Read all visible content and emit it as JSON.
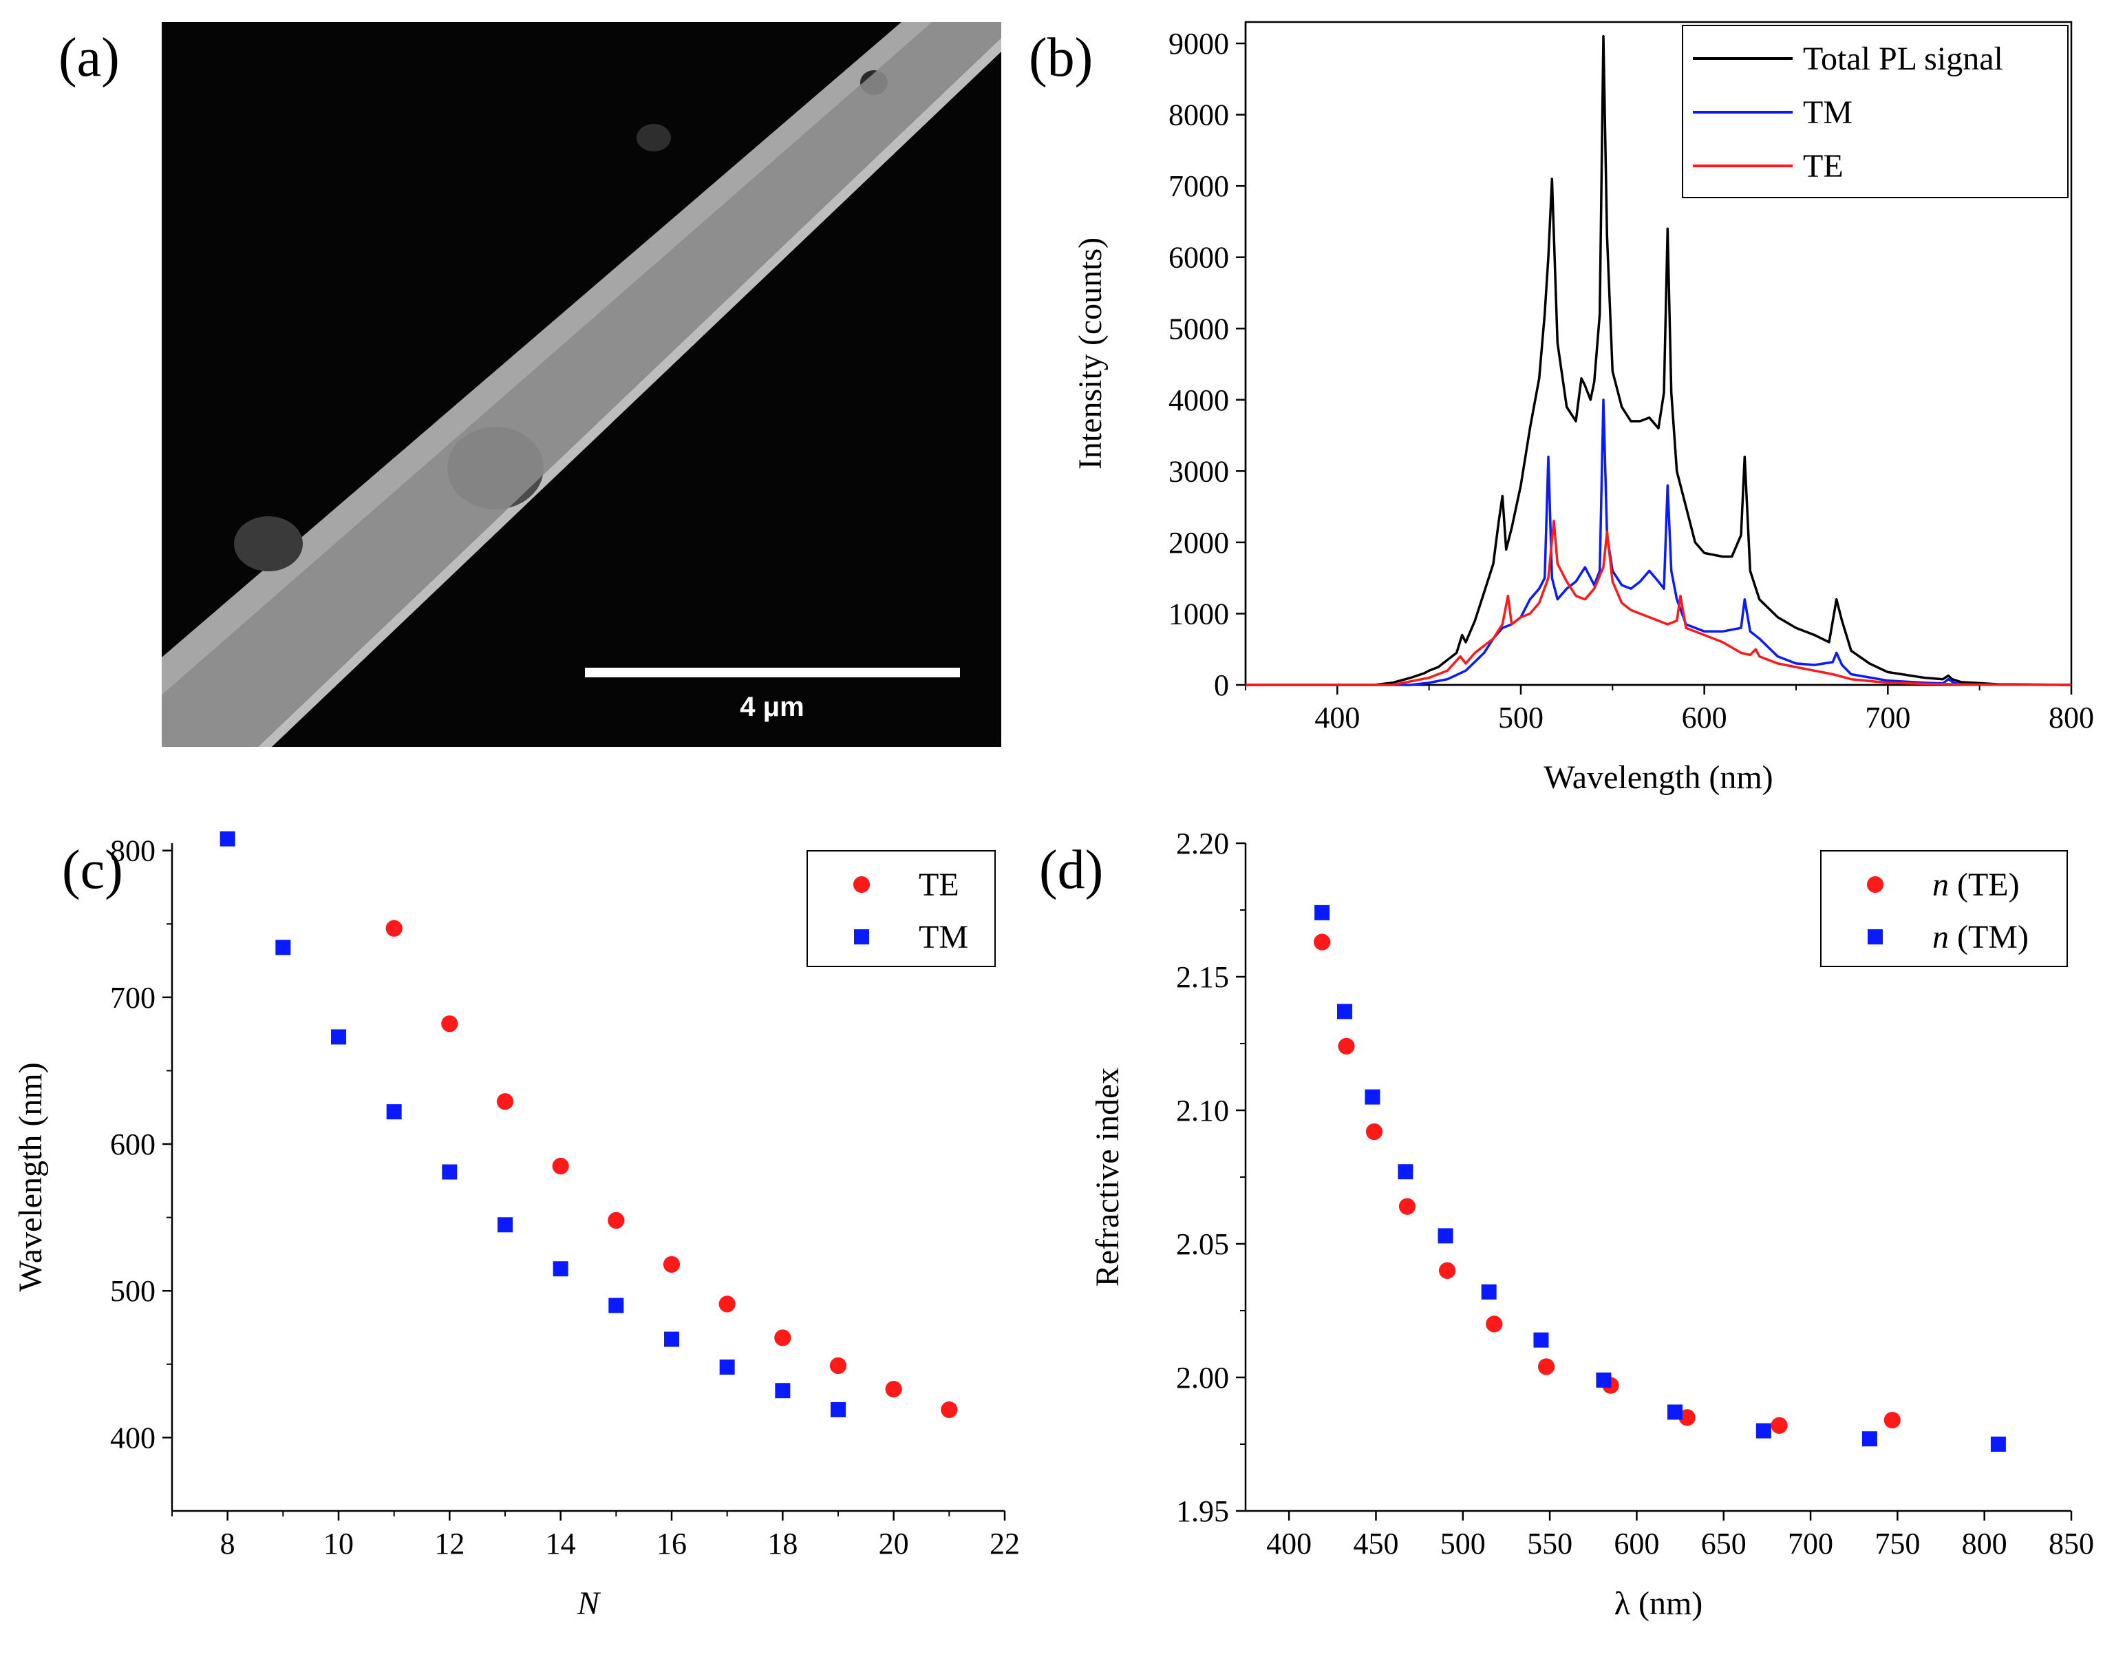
{
  "panels": {
    "a": {
      "label": "(a)",
      "scale_bar": "4 μm"
    },
    "b": {
      "label": "(b)"
    },
    "c": {
      "label": "(c)"
    },
    "d": {
      "label": "(d)"
    }
  },
  "colors": {
    "total": "#000000",
    "tm": "#0a1aff",
    "te": "#ff1a1a"
  },
  "chart_data": [
    {
      "panel": "b",
      "type": "line",
      "title": "",
      "xlabel": "Wavelength (nm)",
      "ylabel": "Intensity (counts)",
      "xlim": [
        350,
        800
      ],
      "ylim": [
        0,
        9300
      ],
      "xticks": [
        400,
        500,
        600,
        700,
        800
      ],
      "yticks": [
        0,
        1000,
        2000,
        3000,
        4000,
        5000,
        6000,
        7000,
        8000,
        9000
      ],
      "legend_position": "top-right",
      "series": [
        {
          "name": "Total PL signal",
          "color": "#000000",
          "x": [
            350,
            420,
            430,
            440,
            447,
            450,
            455,
            460,
            465,
            468,
            470,
            475,
            480,
            485,
            488,
            490,
            492,
            495,
            500,
            505,
            510,
            513,
            515,
            517,
            520,
            525,
            530,
            533,
            535,
            538,
            540,
            543,
            545,
            547,
            550,
            555,
            560,
            565,
            570,
            575,
            578,
            580,
            582,
            585,
            590,
            595,
            600,
            610,
            615,
            620,
            622,
            625,
            630,
            640,
            650,
            660,
            668,
            672,
            675,
            680,
            690,
            700,
            720,
            730,
            733,
            735,
            740,
            760,
            800
          ],
          "y": [
            0,
            0,
            30,
            100,
            160,
            200,
            250,
            350,
            450,
            700,
            600,
            900,
            1300,
            1700,
            2300,
            2650,
            1900,
            2200,
            2800,
            3600,
            4300,
            5200,
            6000,
            7100,
            4800,
            3900,
            3700,
            4300,
            4200,
            4000,
            4250,
            5200,
            9100,
            6300,
            4400,
            3900,
            3700,
            3700,
            3750,
            3600,
            4100,
            6400,
            4100,
            3000,
            2500,
            2000,
            1850,
            1800,
            1800,
            2100,
            3200,
            1600,
            1200,
            950,
            800,
            700,
            600,
            1200,
            900,
            480,
            300,
            180,
            100,
            80,
            130,
            80,
            40,
            10,
            0
          ]
        },
        {
          "name": "TM",
          "color": "#0a1aff",
          "x": [
            350,
            440,
            450,
            460,
            470,
            480,
            485,
            490,
            495,
            500,
            505,
            510,
            513,
            515,
            517,
            520,
            525,
            530,
            535,
            540,
            543,
            545,
            547,
            550,
            555,
            560,
            565,
            570,
            575,
            578,
            580,
            582,
            585,
            590,
            600,
            610,
            620,
            622,
            625,
            630,
            640,
            650,
            660,
            670,
            672,
            675,
            680,
            700,
            720,
            730,
            733,
            736,
            740,
            760,
            800
          ],
          "y": [
            0,
            0,
            30,
            80,
            200,
            450,
            650,
            800,
            850,
            950,
            1200,
            1350,
            1500,
            3200,
            1500,
            1200,
            1350,
            1450,
            1650,
            1400,
            1600,
            4000,
            2100,
            1600,
            1400,
            1350,
            1450,
            1600,
            1450,
            1350,
            2800,
            1600,
            1200,
            850,
            750,
            750,
            800,
            1200,
            750,
            650,
            400,
            300,
            280,
            320,
            450,
            280,
            150,
            60,
            30,
            20,
            80,
            30,
            10,
            5,
            0
          ]
        },
        {
          "name": "TE",
          "color": "#ff1a1a",
          "x": [
            350,
            430,
            440,
            450,
            460,
            467,
            470,
            475,
            480,
            485,
            490,
            493,
            495,
            500,
            505,
            510,
            515,
            518,
            520,
            525,
            530,
            535,
            540,
            545,
            547,
            550,
            555,
            560,
            570,
            580,
            585,
            587,
            590,
            600,
            610,
            620,
            625,
            628,
            630,
            640,
            650,
            660,
            670,
            680,
            700,
            720,
            750,
            800
          ],
          "y": [
            0,
            0,
            50,
            100,
            200,
            400,
            300,
            450,
            550,
            650,
            850,
            1250,
            850,
            950,
            1000,
            1150,
            1500,
            2300,
            1700,
            1450,
            1250,
            1200,
            1350,
            1650,
            2150,
            1450,
            1150,
            1050,
            950,
            850,
            900,
            1250,
            800,
            700,
            600,
            450,
            420,
            500,
            400,
            300,
            250,
            200,
            150,
            80,
            30,
            15,
            5,
            0
          ]
        }
      ]
    },
    {
      "panel": "c",
      "type": "scatter",
      "title": "",
      "xlabel": "N",
      "ylabel": "Wavelength (nm)",
      "xlim": [
        7,
        22
      ],
      "ylim": [
        350,
        805
      ],
      "xticks": [
        8,
        10,
        12,
        14,
        16,
        18,
        20,
        22
      ],
      "yticks": [
        400,
        500,
        600,
        700,
        800
      ],
      "legend_position": "top-right",
      "series": [
        {
          "name": "TE",
          "marker": "circle",
          "color": "#ff1a1a",
          "x": [
            11,
            12,
            13,
            14,
            15,
            16,
            17,
            18,
            19,
            20,
            21
          ],
          "y": [
            747,
            682,
            629,
            585,
            548,
            518,
            491,
            468,
            449,
            433,
            419
          ]
        },
        {
          "name": "TM",
          "marker": "square",
          "color": "#0a1aff",
          "x": [
            8,
            9,
            10,
            11,
            12,
            13,
            14,
            15,
            16,
            17,
            18,
            19
          ],
          "y": [
            808,
            734,
            673,
            622,
            581,
            545,
            515,
            490,
            467,
            448,
            432,
            419
          ]
        }
      ]
    },
    {
      "panel": "d",
      "type": "scatter",
      "title": "",
      "xlabel": "λ (nm)",
      "ylabel": "Refractive index",
      "xlim": [
        375,
        850
      ],
      "ylim": [
        1.95,
        2.2
      ],
      "xticks": [
        400,
        450,
        500,
        550,
        600,
        650,
        700,
        750,
        800,
        850
      ],
      "yticks": [
        1.95,
        2.0,
        2.05,
        2.1,
        2.15,
        2.2
      ],
      "legend_position": "top-right",
      "series": [
        {
          "name": "(TE)",
          "legend_prefix": "n",
          "marker": "circle",
          "color": "#ff1a1a",
          "x": [
            419,
            433,
            449,
            468,
            491,
            518,
            548,
            585,
            629,
            682,
            747
          ],
          "y": [
            2.163,
            2.124,
            2.092,
            2.064,
            2.04,
            2.02,
            2.004,
            1.997,
            1.985,
            1.982,
            1.984
          ]
        },
        {
          "name": "(TM)",
          "legend_prefix": "n",
          "marker": "square",
          "color": "#0a1aff",
          "x": [
            419,
            432,
            448,
            467,
            490,
            515,
            545,
            581,
            622,
            673,
            734,
            808
          ],
          "y": [
            2.174,
            2.137,
            2.105,
            2.077,
            2.053,
            2.032,
            2.014,
            1.999,
            1.987,
            1.98,
            1.977,
            1.975
          ]
        }
      ]
    }
  ]
}
